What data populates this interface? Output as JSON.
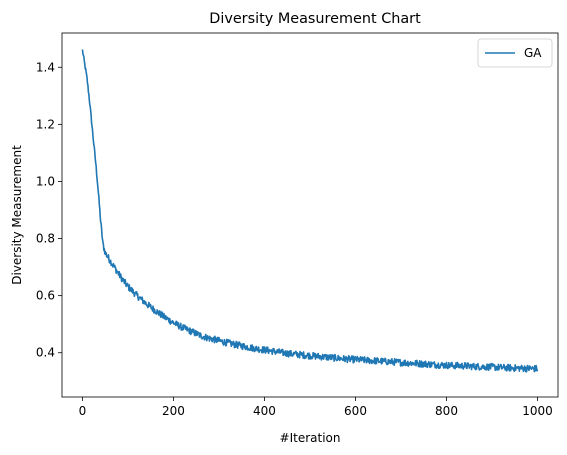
{
  "chart_data": {
    "type": "line",
    "title": "Diversity Measurement Chart",
    "xlabel": "#Iteration",
    "ylabel": "Diversity Measurement",
    "xlim": [
      -45,
      1045
    ],
    "ylim": [
      0.245,
      1.52
    ],
    "xticks": [
      0,
      200,
      400,
      600,
      800,
      1000
    ],
    "yticks": [
      0.4,
      0.6,
      0.8,
      1.0,
      1.2,
      1.4
    ],
    "ytick_labels": [
      "0.4",
      "0.6",
      "0.8",
      "1.0",
      "1.2",
      "1.4"
    ],
    "grid": false,
    "legend": "top-right",
    "series": [
      {
        "name": "GA",
        "color": "#1f77b4",
        "x": [
          0,
          5,
          10,
          15,
          20,
          25,
          30,
          35,
          40,
          45,
          50,
          60,
          70,
          80,
          90,
          100,
          120,
          140,
          160,
          180,
          200,
          220,
          240,
          260,
          280,
          300,
          320,
          340,
          360,
          380,
          400,
          420,
          440,
          460,
          480,
          500,
          520,
          540,
          560,
          580,
          600,
          620,
          640,
          660,
          680,
          700,
          720,
          740,
          760,
          780,
          800,
          820,
          840,
          860,
          880,
          900,
          920,
          940,
          960,
          980,
          1000
        ],
        "y": [
          1.46,
          1.41,
          1.36,
          1.29,
          1.21,
          1.13,
          1.05,
          0.96,
          0.86,
          0.78,
          0.75,
          0.725,
          0.7,
          0.675,
          0.652,
          0.632,
          0.6,
          0.572,
          0.548,
          0.525,
          0.505,
          0.488,
          0.474,
          0.46,
          0.45,
          0.442,
          0.434,
          0.427,
          0.421,
          0.415,
          0.41,
          0.405,
          0.4,
          0.396,
          0.393,
          0.39,
          0.387,
          0.384,
          0.381,
          0.378,
          0.376,
          0.374,
          0.372,
          0.37,
          0.368,
          0.366,
          0.364,
          0.362,
          0.36,
          0.358,
          0.356,
          0.355,
          0.354,
          0.352,
          0.351,
          0.35,
          0.348,
          0.347,
          0.346,
          0.345,
          0.344
        ]
      }
    ]
  }
}
